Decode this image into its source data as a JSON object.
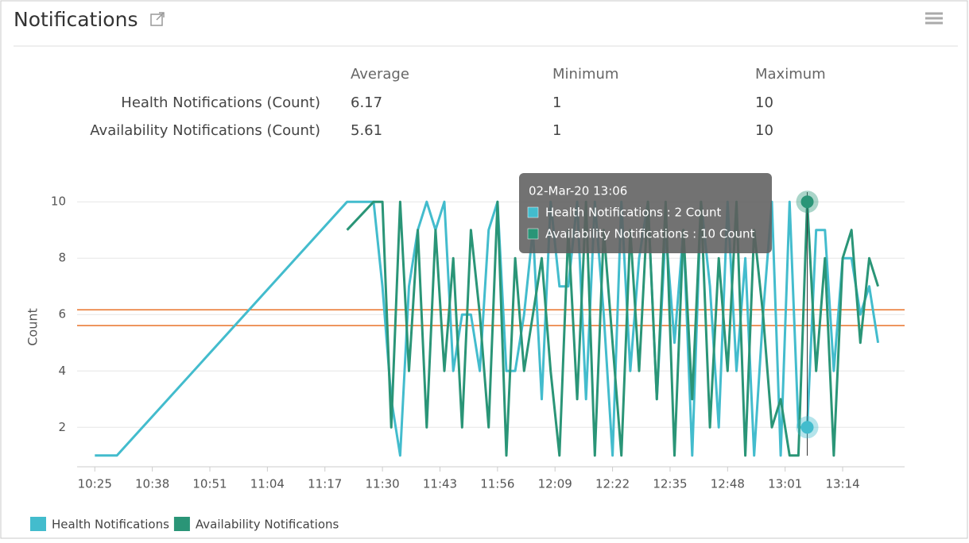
{
  "header": {
    "title": "Notifications"
  },
  "stats": {
    "columns": [
      "Average",
      "Minimum",
      "Maximum"
    ],
    "rows": [
      {
        "label": "Health Notifications (Count)",
        "average": 6.17,
        "minimum": 1,
        "maximum": 10
      },
      {
        "label": "Availability Notifications (Count)",
        "average": 5.61,
        "minimum": 1,
        "maximum": 10
      }
    ]
  },
  "chart_data": {
    "type": "line",
    "y_label": "Count",
    "grid": true,
    "legend": "bottom-left",
    "reference_color": "#e8732a",
    "x": [
      "10:25",
      "10:30",
      "11:22",
      "11:28",
      "11:30",
      "11:32",
      "11:34",
      "11:36",
      "11:38",
      "11:40",
      "11:42",
      "11:44",
      "11:46",
      "11:48",
      "11:50",
      "11:52",
      "11:54",
      "11:56",
      "11:58",
      "12:00",
      "12:02",
      "12:04",
      "12:06",
      "12:08",
      "12:10",
      "12:12",
      "12:14",
      "12:16",
      "12:18",
      "12:20",
      "12:22",
      "12:24",
      "12:26",
      "12:28",
      "12:30",
      "12:32",
      "12:34",
      "12:36",
      "12:38",
      "12:40",
      "12:42",
      "12:44",
      "12:46",
      "12:48",
      "12:50",
      "12:52",
      "12:54",
      "12:56",
      "12:58",
      "13:00",
      "13:02",
      "13:04",
      "13:06",
      "13:08",
      "13:10",
      "13:12",
      "13:14",
      "13:16",
      "13:18",
      "13:20",
      "13:22"
    ],
    "xlim": [
      "10:21",
      "13:28"
    ],
    "xticks": [
      "10:25",
      "10:38",
      "10:51",
      "11:04",
      "11:17",
      "11:30",
      "11:43",
      "11:56",
      "12:09",
      "12:22",
      "12:35",
      "12:48",
      "13:01",
      "13:14"
    ],
    "ylim": [
      0.6,
      10.4
    ],
    "yticks": [
      2,
      4,
      6,
      8,
      10
    ],
    "series": [
      {
        "name": "Health Notifications",
        "color": "#43bccd",
        "values": [
          1,
          1,
          10,
          10,
          7,
          3,
          1,
          7,
          9,
          10,
          9,
          10,
          4,
          6,
          6,
          4,
          9,
          10,
          4,
          4,
          6,
          9,
          3,
          10,
          7,
          7,
          10,
          3,
          10,
          6,
          1,
          10,
          4,
          8,
          10,
          3,
          9,
          5,
          9,
          1,
          10,
          7,
          2,
          10,
          4,
          8,
          1,
          6,
          10,
          1,
          10,
          2,
          2,
          9,
          9,
          4,
          8,
          8,
          6,
          7,
          5
        ]
      },
      {
        "name": "Availability Notifications",
        "color": "#2a9577",
        "values": [
          null,
          null,
          9,
          10,
          10,
          2,
          10,
          4,
          9,
          2,
          9,
          4,
          8,
          2,
          9,
          6,
          2,
          10,
          1,
          8,
          4,
          6,
          8,
          4,
          1,
          9,
          3,
          10,
          1,
          9,
          5,
          1,
          9,
          4,
          10,
          3,
          10,
          1,
          9,
          3,
          10,
          2,
          8,
          4,
          10,
          1,
          9,
          6,
          2,
          3,
          1,
          1,
          10,
          4,
          8,
          1,
          8,
          9,
          5,
          8,
          7
        ]
      }
    ],
    "tooltip": {
      "title": "02-Mar-20 13:06",
      "index": 52,
      "items": [
        "Health Notifications : 2 Count",
        "Availability Notifications : 10 Count"
      ]
    }
  }
}
